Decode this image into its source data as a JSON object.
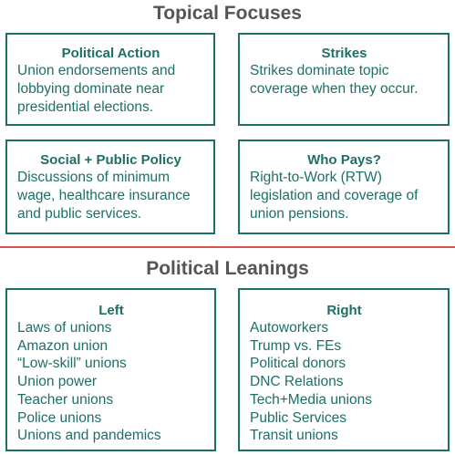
{
  "topical": {
    "heading": "Topical Focuses",
    "boxes": [
      {
        "title": "Political Action",
        "text": "Union endorsements and lobbying dominate near presidential elections."
      },
      {
        "title": "Strikes",
        "text": "Strikes dominate topic coverage when they occur."
      },
      {
        "title": "Social + Public Policy",
        "text": "Discussions of minimum wage, healthcare insurance and public services."
      },
      {
        "title": "Who Pays?",
        "text": "Right-to-Work (RTW) legislation and coverage of union pensions."
      }
    ]
  },
  "political": {
    "heading": "Political Leanings",
    "left": {
      "title": "Left",
      "items": [
        "Laws of unions",
        "Amazon union",
        "“Low-skill” unions",
        "Union power",
        "Teacher unions",
        "Police unions",
        "Unions and pandemics"
      ]
    },
    "right": {
      "title": "Right",
      "items": [
        "Autoworkers",
        "Trump vs. FEs",
        "Political donors",
        "DNC Relations",
        "Tech+Media unions",
        "Public Services",
        "Transit unions"
      ]
    }
  },
  "colors": {
    "accent": "#1e6f64",
    "heading": "#555555",
    "divider": "#d9534f"
  }
}
